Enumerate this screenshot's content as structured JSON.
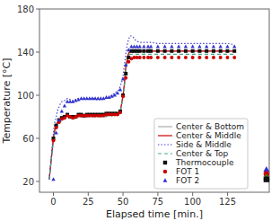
{
  "chart_data": {
    "type": "line",
    "xlabel": "Elapsed time [min.]",
    "ylabel": "Temperature [°C]",
    "xlim": [
      -10,
      155
    ],
    "ylim": [
      10,
      180
    ],
    "xticks": [
      0,
      25,
      50,
      75,
      100,
      125
    ],
    "yticks": [
      20,
      60,
      100,
      140,
      180
    ],
    "grid": false,
    "legend": "lower right",
    "series": [
      {
        "name": "Center & Bottom",
        "type": "line",
        "color": "#aaaaaa",
        "line_style": "solid",
        "x": [
          -3,
          0,
          1,
          2,
          3,
          4,
          5,
          6,
          7,
          8,
          9,
          10,
          11,
          12,
          13,
          14,
          15,
          16,
          17,
          18,
          19,
          20,
          21,
          22,
          23,
          24,
          25,
          26,
          27,
          28,
          29,
          30,
          31,
          32,
          33,
          34,
          35,
          36,
          37,
          38,
          39,
          40,
          41,
          42,
          43,
          44,
          45,
          46,
          47,
          48,
          49,
          50,
          51,
          52,
          53,
          54,
          55,
          56,
          57,
          58,
          59,
          60,
          62,
          65,
          68,
          70,
          75,
          80,
          85,
          90,
          95,
          100,
          105,
          110,
          115,
          120,
          125,
          130
        ],
        "values": [
          22,
          60,
          68,
          72,
          75,
          77,
          78,
          79,
          80,
          80,
          81,
          82,
          81,
          80,
          80,
          80,
          80,
          80,
          81,
          82,
          82,
          82,
          82,
          81,
          81,
          82,
          82,
          82,
          82,
          82,
          82,
          82,
          82,
          82,
          82,
          82,
          82,
          82,
          82,
          83,
          83,
          83,
          83,
          83,
          83,
          83,
          83,
          83,
          84,
          85,
          92,
          100,
          110,
          125,
          133,
          138,
          140,
          141,
          141,
          141,
          141,
          141,
          141,
          141,
          141,
          141,
          141,
          141,
          141,
          141,
          141,
          141,
          141,
          141,
          141,
          141,
          141,
          141
        ]
      },
      {
        "name": "Center & Middle",
        "type": "line",
        "color": "#cc0000",
        "line_style": "solid",
        "x": [
          -3,
          0,
          1,
          2,
          3,
          4,
          5,
          6,
          7,
          8,
          9,
          10,
          11,
          12,
          13,
          14,
          15,
          16,
          17,
          18,
          19,
          20,
          21,
          22,
          23,
          24,
          25,
          26,
          27,
          28,
          29,
          30,
          31,
          32,
          33,
          34,
          35,
          36,
          37,
          38,
          39,
          40,
          41,
          42,
          43,
          44,
          45,
          46,
          47,
          48,
          49,
          50,
          51,
          52,
          53,
          54,
          55,
          56,
          57,
          58,
          59,
          60,
          62,
          65,
          68,
          70,
          75,
          80,
          85,
          90,
          95,
          100,
          105,
          110,
          115,
          120,
          125,
          130
        ],
        "values": [
          22,
          60,
          68,
          72,
          75,
          77,
          78,
          79,
          80,
          80,
          81,
          82,
          81,
          80,
          80,
          80,
          80,
          80,
          81,
          82,
          82,
          82,
          82,
          81,
          81,
          82,
          82,
          82,
          82,
          82,
          82,
          82,
          82,
          82,
          82,
          82,
          82,
          82,
          82,
          83,
          83,
          83,
          83,
          83,
          83,
          83,
          83,
          83,
          84,
          85,
          92,
          100,
          111,
          126,
          134,
          139,
          141,
          141,
          141,
          141,
          141,
          141,
          141,
          141,
          141,
          141,
          141,
          141,
          141,
          141,
          141,
          141,
          141,
          141,
          141,
          141,
          141,
          141
        ]
      },
      {
        "name": "Side & Middle",
        "type": "line",
        "color": "#4444cc",
        "line_style": "dotted",
        "x": [
          -3,
          0,
          1,
          2,
          3,
          4,
          5,
          6,
          7,
          8,
          9,
          10,
          11,
          12,
          13,
          14,
          15,
          16,
          17,
          18,
          19,
          20,
          21,
          22,
          23,
          24,
          25,
          26,
          27,
          28,
          29,
          30,
          31,
          32,
          33,
          34,
          35,
          36,
          37,
          38,
          39,
          40,
          41,
          42,
          43,
          44,
          45,
          46,
          47,
          48,
          49,
          50,
          51,
          52,
          53,
          54,
          55,
          56,
          57,
          58,
          59,
          60,
          62,
          65,
          68,
          70,
          75,
          80,
          85,
          90,
          95,
          100,
          105,
          110,
          115,
          120,
          125,
          130
        ],
        "values": [
          22,
          65,
          75,
          80,
          86,
          89,
          92,
          94,
          95,
          95,
          96,
          97,
          97,
          96,
          95,
          95,
          95,
          96,
          97,
          97,
          97,
          97,
          97,
          97,
          97,
          97,
          97,
          97,
          97,
          97,
          97,
          96,
          96,
          96,
          96,
          96,
          96,
          97,
          97,
          97,
          98,
          98,
          99,
          100,
          101,
          102,
          103,
          104,
          105,
          108,
          112,
          118,
          128,
          138,
          147,
          152,
          155,
          155,
          154,
          153,
          151,
          150,
          149,
          149,
          149,
          149,
          148,
          148,
          148,
          148,
          148,
          148,
          148,
          148,
          148,
          148,
          148,
          147
        ]
      },
      {
        "name": "Center & Top",
        "type": "line",
        "color": "#44aa88",
        "line_style": "dashed",
        "x": [
          -3,
          0,
          1,
          2,
          3,
          4,
          5,
          6,
          7,
          8,
          9,
          10,
          11,
          12,
          13,
          14,
          15,
          16,
          17,
          18,
          19,
          20,
          21,
          22,
          23,
          24,
          25,
          26,
          27,
          28,
          29,
          30,
          31,
          32,
          33,
          34,
          35,
          36,
          37,
          38,
          39,
          40,
          41,
          42,
          43,
          44,
          45,
          46,
          47,
          48,
          49,
          50,
          51,
          52,
          53,
          54,
          55,
          56,
          57,
          58,
          59,
          60,
          62,
          65,
          68,
          70,
          75,
          80,
          85,
          90,
          95,
          100,
          105,
          110,
          115,
          120,
          125,
          130
        ],
        "values": [
          22,
          58,
          65,
          69,
          72,
          74,
          75,
          76,
          77,
          78,
          79,
          80,
          79,
          79,
          78,
          78,
          78,
          79,
          79,
          80,
          80,
          80,
          80,
          80,
          80,
          80,
          80,
          80,
          80,
          80,
          80,
          80,
          80,
          80,
          80,
          80,
          80,
          80,
          80,
          80,
          81,
          81,
          81,
          81,
          82,
          82,
          82,
          82,
          83,
          84,
          91,
          99,
          109,
          122,
          131,
          136,
          138,
          138,
          138,
          138,
          138,
          138,
          138,
          138,
          138,
          138,
          138,
          138,
          138,
          138,
          138,
          138,
          138,
          138,
          138,
          138,
          138,
          138
        ]
      },
      {
        "name": "Thermocouple",
        "type": "scatter",
        "color": "#111111",
        "marker": "square",
        "x": [
          0,
          2,
          4,
          6,
          8,
          10,
          12,
          14,
          16,
          18,
          20,
          22,
          24,
          26,
          28,
          30,
          32,
          34,
          36,
          38,
          40,
          42,
          44,
          46,
          48,
          50,
          52,
          54,
          56,
          58,
          60,
          62,
          65,
          68,
          70,
          75,
          80,
          85,
          90,
          95,
          100,
          105,
          110,
          115,
          120,
          125,
          130
        ],
        "values": [
          60,
          72,
          77,
          79,
          80,
          82,
          80,
          80,
          80,
          82,
          82,
          81,
          82,
          82,
          82,
          82,
          82,
          82,
          82,
          83,
          83,
          83,
          83,
          83,
          85,
          100,
          120,
          135,
          141,
          141,
          141,
          141,
          141,
          141,
          141,
          141,
          141,
          141,
          141,
          141,
          141,
          141,
          141,
          141,
          141,
          141,
          141
        ]
      },
      {
        "name": "FOT 1",
        "type": "scatter",
        "color": "#cc0000",
        "marker": "circle",
        "x": [
          0,
          2,
          4,
          6,
          8,
          10,
          12,
          14,
          16,
          18,
          20,
          22,
          24,
          26,
          28,
          30,
          32,
          34,
          36,
          38,
          40,
          42,
          44,
          46,
          48,
          50,
          52,
          54,
          56,
          58,
          60,
          62,
          65,
          68,
          70,
          75,
          80,
          85,
          90,
          95,
          100,
          105,
          110,
          115,
          120,
          125,
          130
        ],
        "values": [
          58,
          70,
          75,
          78,
          79,
          81,
          80,
          79,
          80,
          81,
          81,
          81,
          81,
          81,
          81,
          81,
          81,
          81,
          81,
          82,
          82,
          82,
          82,
          82,
          84,
          99,
          116,
          131,
          134,
          135,
          135,
          135,
          135,
          135,
          135,
          135,
          135,
          135,
          135,
          135,
          135,
          135,
          135,
          135,
          135,
          135,
          135
        ]
      },
      {
        "name": "FOT 2",
        "type": "scatter",
        "color": "#3333cc",
        "marker": "triangle",
        "x": [
          0,
          2,
          4,
          6,
          8,
          10,
          12,
          14,
          16,
          18,
          20,
          22,
          24,
          26,
          28,
          30,
          32,
          34,
          36,
          38,
          40,
          42,
          44,
          46,
          48,
          50,
          52,
          54,
          56,
          58,
          60,
          62,
          65,
          68,
          70,
          75,
          80,
          85,
          90,
          95,
          100,
          105,
          110,
          115,
          120,
          125,
          130
        ],
        "values": [
          22,
          65,
          77,
          85,
          90,
          94,
          94,
          94,
          95,
          96,
          97,
          97,
          97,
          97,
          97,
          97,
          97,
          97,
          97,
          98,
          98,
          99,
          100,
          102,
          105,
          115,
          128,
          142,
          145,
          145,
          145,
          145,
          145,
          145,
          145,
          145,
          145,
          145,
          145,
          145,
          145,
          145,
          145,
          145,
          145,
          145,
          145
        ]
      },
      {
        "type": "scatter",
        "color": "#3333cc",
        "marker": "triangle",
        "x": [
          153
        ],
        "values": [
          31
        ]
      },
      {
        "type": "scatter",
        "color": "#cc0000",
        "marker": "circle",
        "x": [
          153
        ],
        "values": [
          27
        ]
      },
      {
        "type": "scatter",
        "color": "#00aa00",
        "marker": "triangle",
        "x": [
          153
        ],
        "values": [
          24
        ]
      },
      {
        "type": "scatter",
        "color": "#111111",
        "marker": "square",
        "x": [
          153
        ],
        "values": [
          22
        ]
      }
    ]
  }
}
